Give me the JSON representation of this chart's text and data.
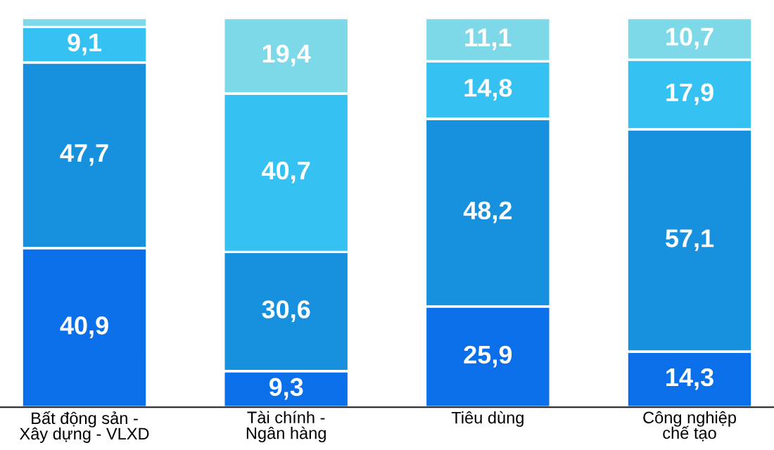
{
  "chart_data": {
    "type": "bar",
    "stacked": true,
    "categories": [
      "Bất động sản -\nXây dựng - VLXD",
      "Tài chính -\nNgân hàng",
      "Tiêu dùng",
      "Công nghiệp\nchế tạo"
    ],
    "series": [
      {
        "color": "#0a6fe8",
        "values": [
          40.9,
          9.3,
          25.9,
          14.3
        ],
        "value_labels": [
          "40,9",
          "9,3",
          "25,9",
          "14,3"
        ]
      },
      {
        "color": "#1791de",
        "values": [
          47.7,
          30.6,
          48.2,
          57.1
        ],
        "value_labels": [
          "47,7",
          "30,6",
          "48,2",
          "57,1"
        ]
      },
      {
        "color": "#35c1f1",
        "values": [
          9.1,
          40.7,
          14.8,
          17.9
        ],
        "value_labels": [
          "9,1",
          "40,7",
          "14,8",
          "17,9"
        ]
      },
      {
        "color": "#7dd9e8",
        "values": [
          2.3,
          19.4,
          11.1,
          10.7
        ],
        "value_labels": [
          null,
          "19,4",
          "11,1",
          "10,7"
        ]
      }
    ],
    "grid": false,
    "legend": false
  }
}
